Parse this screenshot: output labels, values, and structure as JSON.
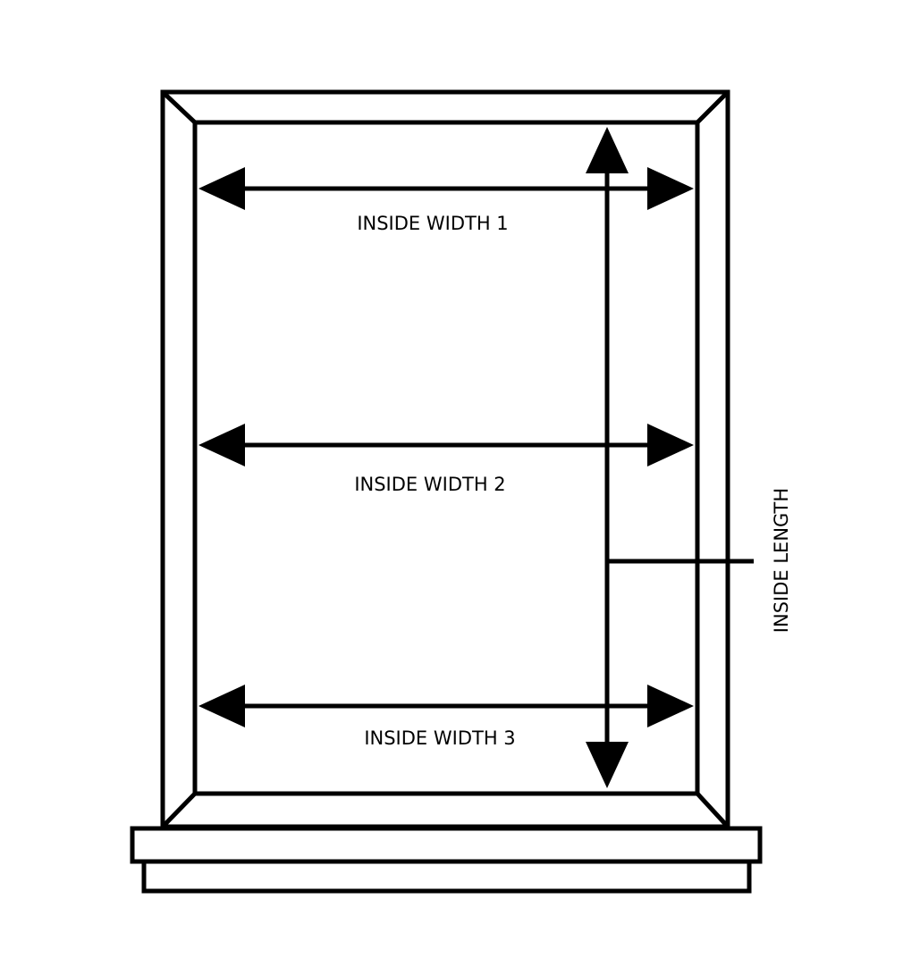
{
  "labels": {
    "inside_width_1": "INSIDE WIDTH 1",
    "inside_width_2": "INSIDE WIDTH 2",
    "inside_width_3": "INSIDE WIDTH 3",
    "inside_length": "INSIDE LENGTH"
  },
  "colors": {
    "line": "#000000",
    "background": "#ffffff"
  }
}
